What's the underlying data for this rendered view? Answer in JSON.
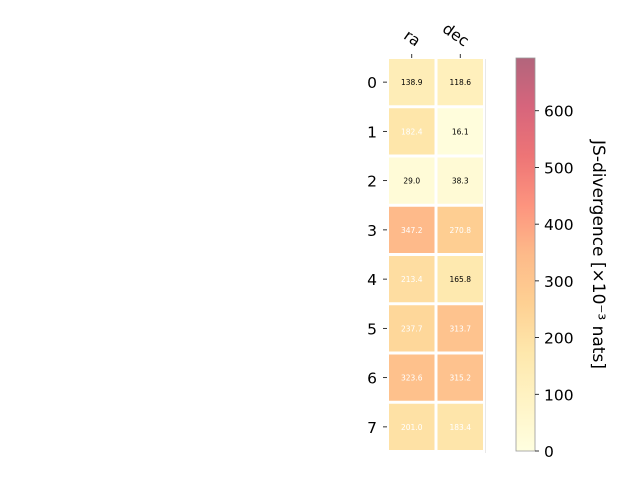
{
  "chart_data": {
    "type": "heatmap",
    "title": "",
    "columns": [
      "ra",
      "dec"
    ],
    "rows": [
      "0",
      "1",
      "2",
      "3",
      "4",
      "5",
      "6",
      "7"
    ],
    "values": [
      [
        138.9,
        118.6
      ],
      [
        182.4,
        16.1
      ],
      [
        29.0,
        38.3
      ],
      [
        347.2,
        270.8
      ],
      [
        213.4,
        165.8
      ],
      [
        237.7,
        313.7
      ],
      [
        323.6,
        315.2
      ],
      [
        201.0,
        183.4
      ]
    ],
    "value_labels": [
      [
        "138.9",
        "118.6"
      ],
      [
        "182.4",
        "16.1"
      ],
      [
        "29.0",
        "38.3"
      ],
      [
        "347.2",
        "270.8"
      ],
      [
        "213.4",
        "165.8"
      ],
      [
        "237.7",
        "313.7"
      ],
      [
        "323.6",
        "315.2"
      ],
      [
        "201.0",
        "183.4"
      ]
    ],
    "colorbar": {
      "label": "JS-divergence [×10⁻³ nats]",
      "range": [
        0,
        693
      ],
      "ticks": [
        0,
        100,
        200,
        300,
        400,
        500,
        600
      ],
      "colormap": "YlOrRd"
    },
    "grid": false,
    "legend": "none"
  }
}
